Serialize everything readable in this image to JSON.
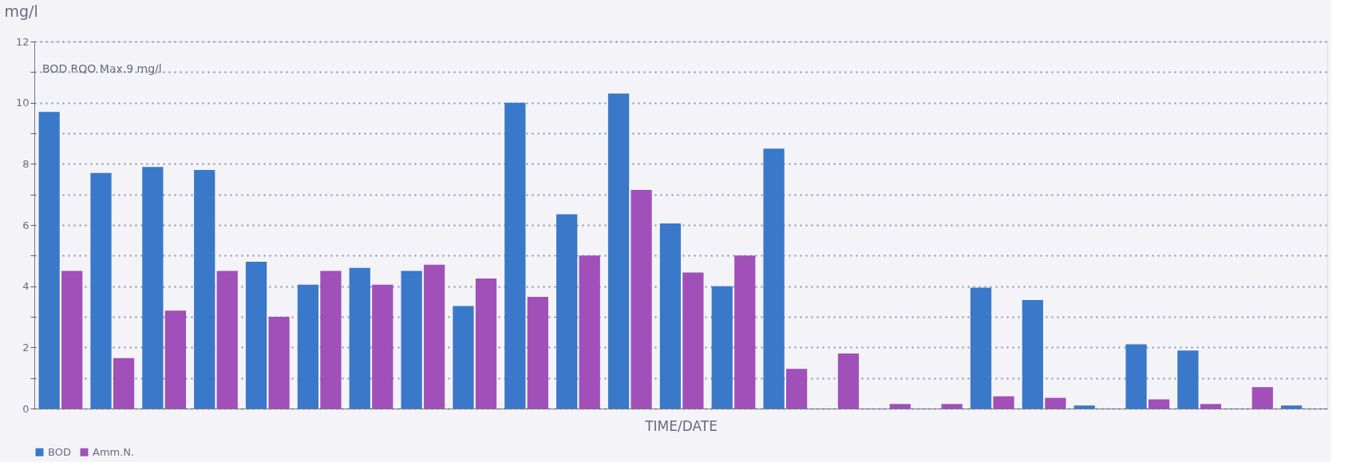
{
  "chart_data": {
    "type": "bar",
    "xlabel": "TIME/DATE",
    "ylabel": "mg/l",
    "annotations": [
      "BOD RQO Max.9 mg/l"
    ],
    "categories": [
      null,
      null,
      null,
      null,
      null,
      null,
      null,
      null,
      null,
      null,
      null,
      null,
      null,
      null,
      null,
      null,
      null,
      null,
      null,
      null,
      null,
      null,
      null,
      null,
      null
    ],
    "series": [
      {
        "name": "BOD",
        "color": "#3a78c9",
        "values": [
          9.7,
          7.7,
          7.9,
          7.8,
          4.8,
          4.05,
          4.6,
          4.5,
          3.35,
          10.0,
          6.35,
          10.3,
          6.05,
          4.0,
          8.5,
          null,
          null,
          null,
          3.95,
          3.55,
          0.1,
          2.1,
          1.9,
          null,
          0.1
        ]
      },
      {
        "name": "Amm.N.",
        "color": "#a050b8",
        "values": [
          4.5,
          1.65,
          3.2,
          4.5,
          3.0,
          4.5,
          4.05,
          4.7,
          4.25,
          3.65,
          5.0,
          7.15,
          4.45,
          5.0,
          1.3,
          1.8,
          0.15,
          0.15,
          0.4,
          0.35,
          null,
          0.3,
          0.15,
          0.7,
          null
        ]
      }
    ],
    "ylim": [
      0,
      12
    ],
    "yticks": [
      0,
      {
        "value": 1,
        "label": null
      },
      2,
      {
        "value": 3,
        "label": null
      },
      4,
      {
        "value": 5,
        "label": null
      },
      6,
      {
        "value": 7,
        "label": null
      },
      8,
      {
        "value": 9,
        "label": null
      },
      10,
      {
        "value": 11,
        "label": null
      },
      12
    ],
    "grid": "y",
    "legend": "bottom",
    "tick_labels": "y"
  }
}
